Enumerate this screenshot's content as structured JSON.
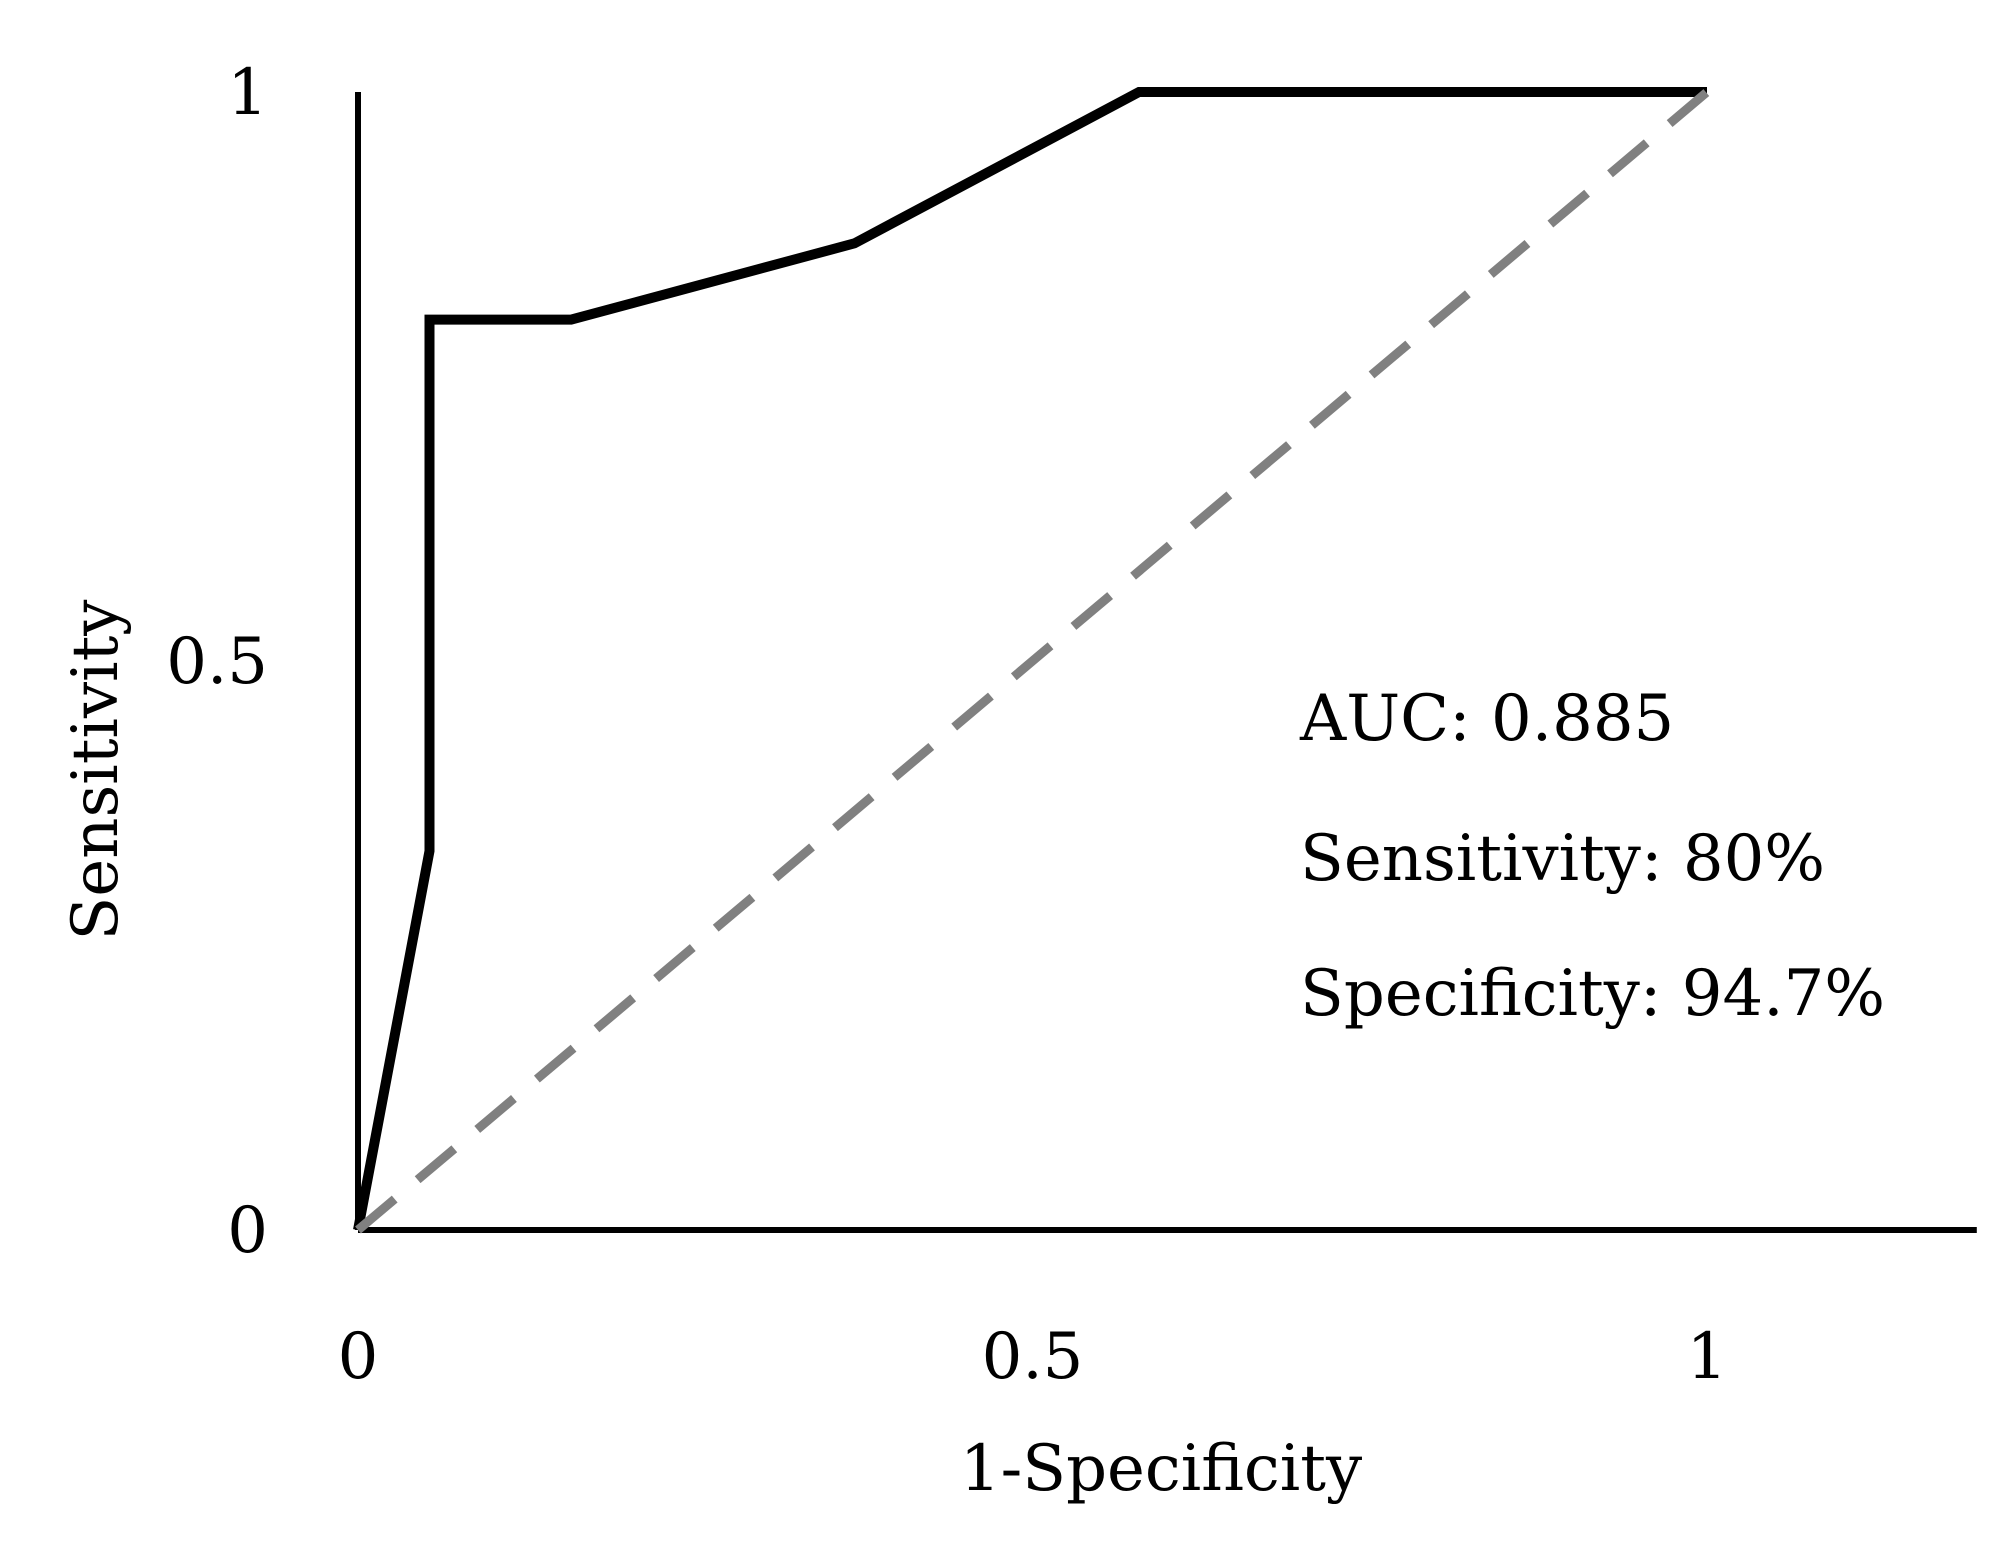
{
  "chart_data": {
    "type": "line",
    "title": "",
    "xlabel": "1-Specificity",
    "ylabel": "Sensitivity",
    "xlim": [
      0,
      1.2
    ],
    "ylim": [
      0,
      1
    ],
    "x_ticks": [
      "0",
      "0.5",
      "1"
    ],
    "y_ticks": [
      "0",
      "0.5",
      "1"
    ],
    "grid": false,
    "series": [
      {
        "style": "solid",
        "color": "#000000",
        "x": [
          0,
          0.053,
          0.053,
          0.158,
          0.368,
          0.579,
          1.0
        ],
        "y": [
          0,
          0.333,
          0.8,
          0.8,
          0.867,
          1.0,
          1.0
        ]
      },
      {
        "style": "dashed",
        "color": "#808080",
        "x": [
          0,
          1
        ],
        "y": [
          0,
          1
        ]
      }
    ],
    "annotations": [
      "AUC: 0.885",
      "Sensitivity: 80%",
      "Specificity: 94.7%"
    ]
  }
}
